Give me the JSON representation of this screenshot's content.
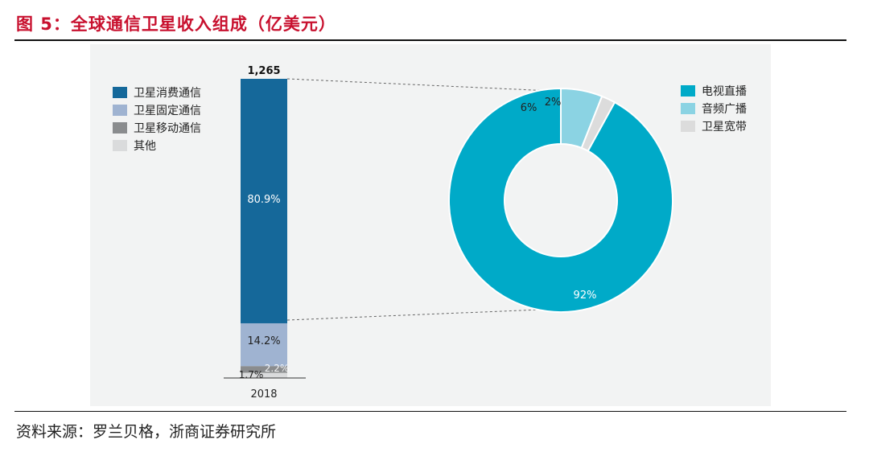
{
  "figure": {
    "title": "图 5：全球通信卫星收入组成（亿美元）",
    "source": "资料来源：罗兰贝格，浙商证券研究所"
  },
  "colors": {
    "consumer": "#15689a",
    "fixed": "#9fb3d1",
    "mobile": "#8a8c8e",
    "other": "#dadbdc",
    "tv": "#00aac8",
    "radio": "#8bd3e3",
    "broadband": "#dcdcdc"
  },
  "chart_data": [
    {
      "type": "bar",
      "stacked": true,
      "categories": [
        "2018"
      ],
      "total_label": "1,265",
      "series": [
        {
          "name": "卫星消费通信",
          "values": [
            80.9
          ],
          "label": "80.9%"
        },
        {
          "name": "卫星固定通信",
          "values": [
            14.2
          ],
          "label": "14.2%"
        },
        {
          "name": "卫星移动通信",
          "values": [
            2.2
          ],
          "label": "2.2%"
        },
        {
          "name": "其他",
          "values": [
            1.7
          ],
          "label": "1.7%"
        }
      ],
      "legend_position": "left"
    },
    {
      "type": "pie",
      "donut": true,
      "parent_series": "卫星消费通信",
      "slices": [
        {
          "label": "电视直播",
          "value": 92,
          "text": "92%"
        },
        {
          "label": "音频广播",
          "value": 6,
          "text": "6%"
        },
        {
          "label": "卫星宽带",
          "value": 2,
          "text": "2%"
        }
      ],
      "legend_position": "top-right"
    }
  ]
}
